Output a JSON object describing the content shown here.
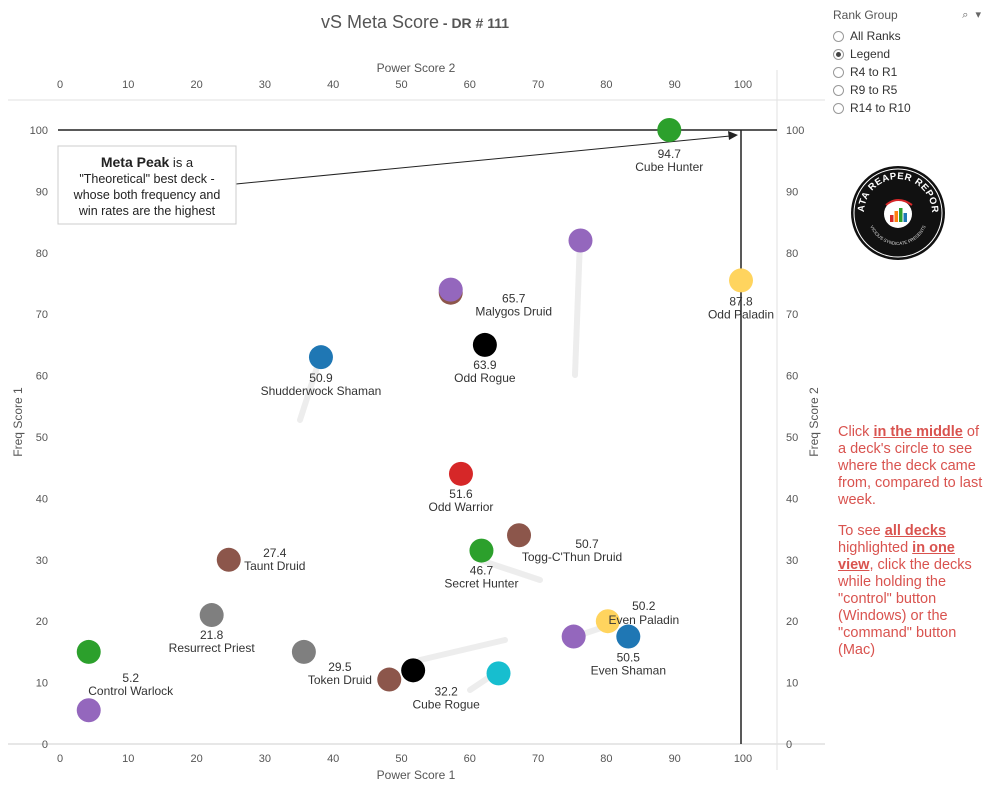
{
  "header": {
    "title": "vS Meta Score",
    "subtitle": " - DR # 111"
  },
  "rank_group": {
    "title": "Rank Group",
    "options": [
      "All Ranks",
      "Legend",
      "R4 to R1",
      "R9 to R5",
      "R14 to R10"
    ],
    "selected": 1
  },
  "logo": {
    "text_top": "DATA REAPER REPORT",
    "text_bottom": "VICIOUS SYNDICATE PRESENTS"
  },
  "instructions": {
    "p1_pre": "Click ",
    "p1_bold": "in the middle",
    "p1_post": " of a deck's circle to see where the deck came from, compared to last week.",
    "p2_pre": "To see ",
    "p2_bold1": "all decks",
    "p2_mid": " highlighted ",
    "p2_bold2": "in one view",
    "p2_post": ", click the decks while holding the \"control\" button (Windows) or the \"command\" button (Mac)"
  },
  "annotation": {
    "bold": "Meta Peak",
    "line1_rest": " is a",
    "line2": "\"Theoretical\" best deck -",
    "line3": "whose both frequency and",
    "line4": "win rates are the highest"
  },
  "colors": {
    "hunter": "#2ca02c",
    "druid": "#8c564b",
    "paladin": "#ffd45e",
    "priest": "#7f7f7f",
    "rogue": "#000000",
    "shaman": "#1f77b4",
    "warlock": "#9467bd",
    "warrior": "#d62728",
    "mage": "#17becf",
    "text": "#333333",
    "instruction": "#d9534f"
  },
  "chart_data": {
    "type": "scatter",
    "xlabel_top": "Power Score 2",
    "xlabel_bottom": "Power Score 1",
    "ylabel_left": "Freq Score 1",
    "ylabel_right": "Freq Score 2",
    "xlim": [
      0,
      105
    ],
    "ylim": [
      0,
      105
    ],
    "xticks": [
      0,
      10,
      20,
      30,
      40,
      50,
      60,
      70,
      80,
      90,
      100
    ],
    "yticks": [
      0,
      10,
      20,
      30,
      40,
      50,
      60,
      70,
      80,
      90,
      100
    ],
    "reference_lines": {
      "x": 100,
      "y": 100
    },
    "points": [
      {
        "x": 89.5,
        "y": 100,
        "color": "hunter",
        "score": "94.7",
        "name": "Cube Hunter"
      },
      {
        "x": 76.5,
        "y": 82,
        "color": "warlock",
        "score": "",
        "name": ""
      },
      {
        "x": 100,
        "y": 75.5,
        "color": "paladin",
        "score": "87.8",
        "name": "Odd Paladin"
      },
      {
        "x": 57.5,
        "y": 73.5,
        "color": "druid",
        "score": "",
        "name": ""
      },
      {
        "x": 57.5,
        "y": 74,
        "color": "warlock",
        "score": "65.7",
        "name": "Malygos Druid"
      },
      {
        "x": 62.5,
        "y": 65,
        "color": "rogue",
        "score": "63.9",
        "name": "Odd Rogue"
      },
      {
        "x": 38.5,
        "y": 63,
        "color": "shaman",
        "score": "50.9",
        "name": "Shudderwock Shaman"
      },
      {
        "x": 59,
        "y": 44,
        "color": "warrior",
        "score": "51.6",
        "name": "Odd Warrior"
      },
      {
        "x": 67.5,
        "y": 34,
        "color": "druid",
        "score": "50.7",
        "name": "Togg-C'Thun Druid"
      },
      {
        "x": 62,
        "y": 31.5,
        "color": "hunter",
        "score": "46.7",
        "name": "Secret Hunter"
      },
      {
        "x": 25,
        "y": 30,
        "color": "druid",
        "score": "27.4",
        "name": "Taunt Druid"
      },
      {
        "x": 22.5,
        "y": 21,
        "color": "priest",
        "score": "21.8",
        "name": "Resurrect Priest"
      },
      {
        "x": 80.5,
        "y": 20,
        "color": "paladin",
        "score": "50.2",
        "name": "Even Paladin"
      },
      {
        "x": 75.5,
        "y": 17.5,
        "color": "warlock",
        "score": "",
        "name": ""
      },
      {
        "x": 83.5,
        "y": 17.5,
        "color": "shaman",
        "score": "50.5",
        "name": "Even Shaman"
      },
      {
        "x": 4.5,
        "y": 15,
        "color": "hunter",
        "score": "",
        "name": ""
      },
      {
        "x": 36,
        "y": 15,
        "color": "priest",
        "score": "29.5",
        "name": "Token Druid"
      },
      {
        "x": 52,
        "y": 12,
        "color": "rogue",
        "score": "32.2",
        "name": "Cube Rogue"
      },
      {
        "x": 64.5,
        "y": 11.5,
        "color": "mage",
        "score": "",
        "name": ""
      },
      {
        "x": 48.5,
        "y": 10.5,
        "color": "druid",
        "score": "",
        "name": ""
      },
      {
        "x": 4.5,
        "y": 5.5,
        "color": "warlock",
        "score": "5.2",
        "name": "Control Warlock"
      }
    ]
  }
}
